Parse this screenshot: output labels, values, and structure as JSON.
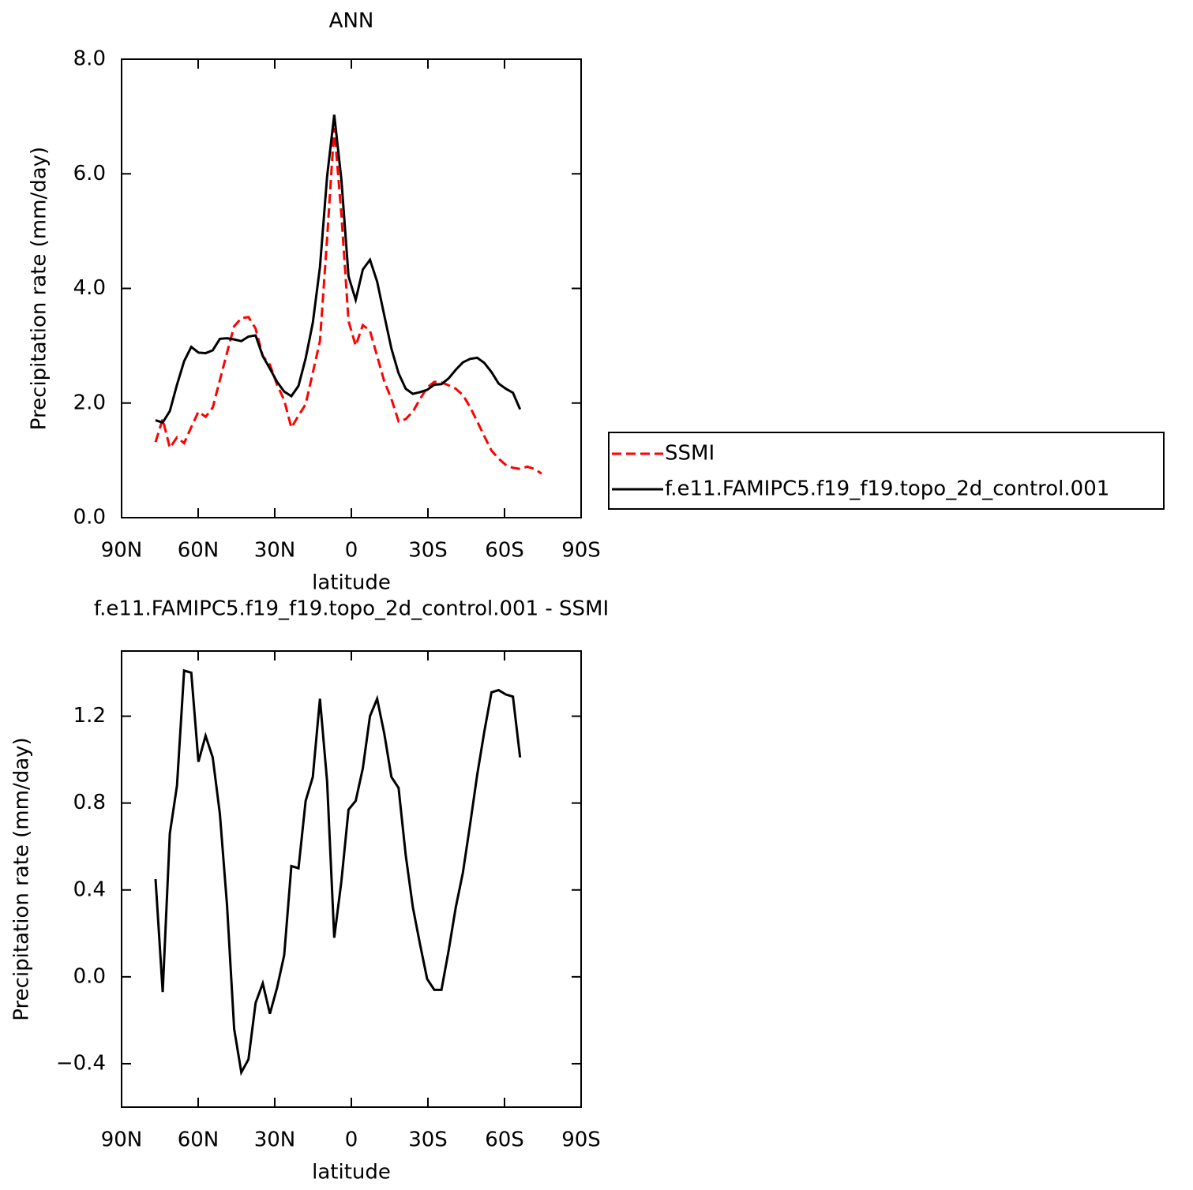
{
  "chart_data": [
    {
      "type": "line",
      "title": "ANN",
      "xlabel": "latitude",
      "ylabel": "Precipitation rate (mm/day)",
      "xlim": [
        90,
        -90
      ],
      "xticks": [
        {
          "value": 90,
          "label": "90N"
        },
        {
          "value": 60,
          "label": "60N"
        },
        {
          "value": 30,
          "label": "30N"
        },
        0,
        {
          "value": -30,
          "label": "30S"
        },
        {
          "value": -60,
          "label": "60S"
        },
        {
          "value": -90,
          "label": "90S"
        }
      ],
      "ylim": [
        0,
        8
      ],
      "yticks": [
        {
          "value": 0,
          "label": "0.0"
        },
        {
          "value": 2,
          "label": "2.0"
        },
        {
          "value": 4,
          "label": "4.0"
        },
        {
          "value": 6,
          "label": "6.0"
        },
        {
          "value": 8,
          "label": "8.0"
        }
      ],
      "legend": "right",
      "series": [
        {
          "name": "SSMI",
          "color": "#ff0000",
          "linestyle": "dashed",
          "x": [
            76.7,
            73.9,
            71.1,
            68.3,
            65.5,
            62.7,
            59.9,
            57.1,
            54.3,
            51.5,
            48.7,
            45.9,
            43.1,
            40.3,
            37.5,
            34.7,
            31.9,
            29.1,
            26.3,
            23.5,
            20.7,
            17.9,
            15.1,
            12.3,
            9.5,
            6.7,
            3.9,
            1.1,
            -1.7,
            -4.5,
            -7.3,
            -10.1,
            -12.9,
            -15.7,
            -18.5,
            -21.3,
            -24.1,
            -26.9,
            -29.7,
            -32.5,
            -35.3,
            -38.1,
            -40.9,
            -43.7,
            -46.5,
            -49.3,
            -52.1,
            -54.9,
            -57.7,
            -60.5,
            -63.3,
            -66.1,
            -68.9,
            -71.7,
            -74.5
          ],
          "values": [
            1.32,
            1.72,
            1.22,
            1.4,
            1.3,
            1.58,
            1.85,
            1.76,
            1.92,
            2.4,
            2.88,
            3.34,
            3.48,
            3.5,
            3.3,
            2.82,
            2.67,
            2.32,
            2.05,
            1.57,
            1.78,
            1.98,
            2.53,
            3.08,
            4.87,
            6.8,
            5.29,
            3.43,
            3.0,
            3.36,
            3.26,
            2.82,
            2.38,
            2.07,
            1.68,
            1.72,
            1.85,
            2.07,
            2.27,
            2.37,
            2.36,
            2.31,
            2.25,
            2.14,
            1.93,
            1.68,
            1.42,
            1.17,
            1.03,
            0.92,
            0.87,
            0.85,
            0.89,
            0.85,
            0.77
          ]
        },
        {
          "name": "f.e11.FAMIPC5.f19_f19.topo_2d_control.001",
          "color": "#000000",
          "linestyle": "solid",
          "x": [
            76.7,
            73.9,
            71.1,
            68.3,
            65.5,
            62.7,
            59.9,
            57.1,
            54.3,
            51.5,
            48.7,
            45.9,
            43.1,
            40.3,
            37.5,
            34.7,
            31.9,
            29.1,
            26.3,
            23.5,
            20.7,
            17.9,
            15.1,
            12.3,
            9.5,
            6.7,
            3.9,
            1.1,
            -1.7,
            -4.5,
            -7.3,
            -10.1,
            -12.9,
            -15.7,
            -18.5,
            -21.3,
            -24.1,
            -26.9,
            -29.7,
            -32.5,
            -35.3,
            -38.1,
            -40.9,
            -43.7,
            -46.5,
            -49.3,
            -52.1,
            -54.9,
            -57.7,
            -60.5,
            -63.3,
            -66.1
          ],
          "values": [
            1.7,
            1.66,
            1.86,
            2.32,
            2.73,
            2.98,
            2.88,
            2.87,
            2.92,
            3.12,
            3.13,
            3.11,
            3.08,
            3.16,
            3.18,
            2.82,
            2.6,
            2.37,
            2.2,
            2.12,
            2.3,
            2.78,
            3.4,
            4.37,
            5.95,
            7.03,
            5.9,
            4.21,
            3.8,
            4.33,
            4.5,
            4.12,
            3.53,
            2.95,
            2.52,
            2.25,
            2.16,
            2.19,
            2.23,
            2.32,
            2.33,
            2.43,
            2.58,
            2.71,
            2.77,
            2.79,
            2.7,
            2.54,
            2.34,
            2.25,
            2.18,
            1.89
          ]
        }
      ]
    },
    {
      "type": "line",
      "title": "f.e11.FAMIPC5.f19_f19.topo_2d_control.001 - SSMI",
      "xlabel": "latitude",
      "ylabel": "Precipitation rate (mm/day)",
      "xlim": [
        90,
        -90
      ],
      "xticks": [
        {
          "value": 90,
          "label": "90N"
        },
        {
          "value": 60,
          "label": "60N"
        },
        {
          "value": 30,
          "label": "30N"
        },
        0,
        {
          "value": -30,
          "label": "30S"
        },
        {
          "value": -60,
          "label": "60S"
        },
        {
          "value": -90,
          "label": "90S"
        }
      ],
      "ylim": [
        -0.6,
        1.5
      ],
      "yticks": [
        {
          "value": -0.4,
          "label": "−0.4"
        },
        {
          "value": 0,
          "label": "0.0"
        },
        0.4,
        0.8,
        1.2
      ],
      "series": [
        {
          "color": "#000000",
          "linestyle": "solid",
          "x": [
            76.7,
            73.9,
            71.1,
            68.3,
            65.5,
            62.7,
            59.9,
            57.1,
            54.3,
            51.5,
            48.7,
            45.9,
            43.1,
            40.3,
            37.5,
            34.7,
            31.9,
            29.1,
            26.3,
            23.5,
            20.7,
            17.9,
            15.1,
            12.3,
            9.5,
            6.7,
            3.9,
            1.1,
            -1.7,
            -4.5,
            -7.3,
            -10.1,
            -12.9,
            -15.7,
            -18.5,
            -21.3,
            -24.1,
            -26.9,
            -29.7,
            -32.5,
            -35.3,
            -38.1,
            -40.9,
            -43.7,
            -46.5,
            -49.3,
            -52.1,
            -54.9,
            -57.7,
            -60.5,
            -63.3,
            -66.1
          ],
          "values": [
            0.45,
            -0.07,
            0.66,
            0.88,
            1.41,
            1.4,
            0.99,
            1.11,
            1.01,
            0.75,
            0.33,
            -0.24,
            -0.44,
            -0.38,
            -0.12,
            -0.03,
            -0.17,
            -0.05,
            0.1,
            0.51,
            0.5,
            0.81,
            0.92,
            1.28,
            0.9,
            0.18,
            0.44,
            0.77,
            0.81,
            0.96,
            1.2,
            1.28,
            1.12,
            0.92,
            0.87,
            0.56,
            0.32,
            0.15,
            -0.01,
            -0.06,
            -0.06,
            0.12,
            0.32,
            0.48,
            0.7,
            0.93,
            1.13,
            1.31,
            1.32,
            1.3,
            1.29,
            1.01
          ]
        }
      ]
    }
  ]
}
